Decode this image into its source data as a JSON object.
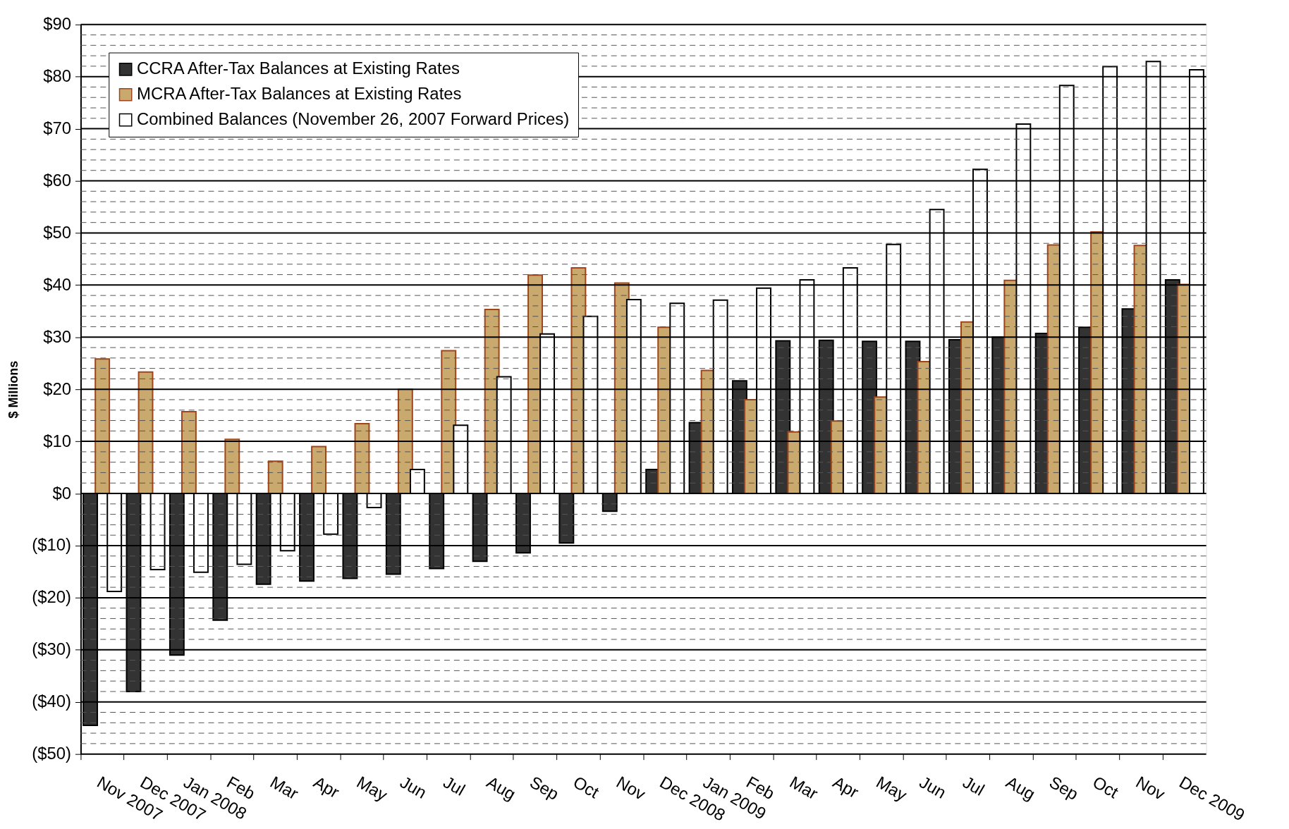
{
  "chart_data": {
    "type": "bar",
    "ylabel": "$ Millions",
    "categories": [
      "Nov 2007",
      "Dec 2007",
      "Jan 2008",
      "Feb",
      "Mar",
      "Apr",
      "May",
      "Jun",
      "Jul",
      "Aug",
      "Sep",
      "Oct",
      "Nov",
      "Dec 2008",
      "Jan 2009",
      "Feb",
      "Mar",
      "Apr",
      "May",
      "Jun",
      "Jul",
      "Aug",
      "Sep",
      "Oct",
      "Nov",
      "Dec 2009"
    ],
    "series": [
      {
        "name": "CCRA After-Tax Balances at Existing Rates",
        "color": "#333333",
        "values": [
          -44.5,
          -38,
          -31,
          -24.3,
          -17.4,
          -16.8,
          -16.3,
          -15.5,
          -14.4,
          -13,
          -11.4,
          -9.5,
          -3.4,
          4.6,
          13.6,
          21.6,
          29.3,
          29.4,
          29.2,
          29.2,
          29.5,
          30.0,
          30.7,
          31.9,
          35.4,
          41
        ]
      },
      {
        "name": "MCRA After-Tax Balances at Existing Rates",
        "color": "#c9a96e",
        "values": [
          25.8,
          23.3,
          15.7,
          10.4,
          6.2,
          9.0,
          13.4,
          20.0,
          27.4,
          35.3,
          41.9,
          43.3,
          40.4,
          31.9,
          23.6,
          18.0,
          11.8,
          13.9,
          18.5,
          25.3,
          32.9,
          40.9,
          47.7,
          50.2,
          47.6,
          40.1
        ]
      },
      {
        "name": "Combined Balances (November 26, 2007 Forward Prices)",
        "color": "#ffffff",
        "values": [
          -18.8,
          -14.6,
          -15.1,
          -13.6,
          -11.0,
          -7.8,
          -2.7,
          4.6,
          13.1,
          22.4,
          30.6,
          34.0,
          37.2,
          36.5,
          37.1,
          39.4,
          41.0,
          43.3,
          47.8,
          54.5,
          62.2,
          70.9,
          78.3,
          81.9,
          82.9,
          81.3
        ]
      }
    ],
    "ylim": [
      -50,
      90
    ],
    "yticks": [
      {
        "value": -50,
        "label": "($50)"
      },
      {
        "value": -48,
        "label": null
      },
      {
        "value": -46,
        "label": null
      },
      {
        "value": -44,
        "label": null
      },
      {
        "value": -42,
        "label": null
      },
      {
        "value": -40,
        "label": "($40)"
      },
      {
        "value": -38,
        "label": null
      },
      {
        "value": -36,
        "label": null
      },
      {
        "value": -34,
        "label": null
      },
      {
        "value": -32,
        "label": null
      },
      {
        "value": -30,
        "label": "($30)"
      },
      {
        "value": -28,
        "label": null
      },
      {
        "value": -26,
        "label": null
      },
      {
        "value": -24,
        "label": null
      },
      {
        "value": -22,
        "label": null
      },
      {
        "value": -20,
        "label": "($20)"
      },
      {
        "value": -18,
        "label": null
      },
      {
        "value": -16,
        "label": null
      },
      {
        "value": -14,
        "label": null
      },
      {
        "value": -12,
        "label": null
      },
      {
        "value": -10,
        "label": "($10)"
      },
      {
        "value": -8,
        "label": null
      },
      {
        "value": -6,
        "label": null
      },
      {
        "value": -4,
        "label": null
      },
      {
        "value": -2,
        "label": null
      },
      {
        "value": 0,
        "label": "$0"
      },
      {
        "value": 2,
        "label": null
      },
      {
        "value": 4,
        "label": null
      },
      {
        "value": 6,
        "label": null
      },
      {
        "value": 8,
        "label": null
      },
      {
        "value": 10,
        "label": "$10"
      },
      {
        "value": 12,
        "label": null
      },
      {
        "value": 14,
        "label": null
      },
      {
        "value": 16,
        "label": null
      },
      {
        "value": 18,
        "label": null
      },
      {
        "value": 20,
        "label": "$20"
      },
      {
        "value": 22,
        "label": null
      },
      {
        "value": 24,
        "label": null
      },
      {
        "value": 26,
        "label": null
      },
      {
        "value": 28,
        "label": null
      },
      {
        "value": 30,
        "label": "$30"
      },
      {
        "value": 32,
        "label": null
      },
      {
        "value": 34,
        "label": null
      },
      {
        "value": 36,
        "label": null
      },
      {
        "value": 38,
        "label": null
      },
      {
        "value": 40,
        "label": "$40"
      },
      {
        "value": 42,
        "label": null
      },
      {
        "value": 44,
        "label": null
      },
      {
        "value": 46,
        "label": null
      },
      {
        "value": 48,
        "label": null
      },
      {
        "value": 50,
        "label": "$50"
      },
      {
        "value": 52,
        "label": null
      },
      {
        "value": 54,
        "label": null
      },
      {
        "value": 56,
        "label": null
      },
      {
        "value": 58,
        "label": null
      },
      {
        "value": 60,
        "label": "$60"
      },
      {
        "value": 62,
        "label": null
      },
      {
        "value": 64,
        "label": null
      },
      {
        "value": 66,
        "label": null
      },
      {
        "value": 68,
        "label": null
      },
      {
        "value": 70,
        "label": "$70"
      },
      {
        "value": 72,
        "label": null
      },
      {
        "value": 74,
        "label": null
      },
      {
        "value": 76,
        "label": null
      },
      {
        "value": 78,
        "label": null
      },
      {
        "value": 80,
        "label": "$80"
      },
      {
        "value": 82,
        "label": null
      },
      {
        "value": 84,
        "label": null
      },
      {
        "value": 86,
        "label": null
      },
      {
        "value": 88,
        "label": null
      },
      {
        "value": 90,
        "label": "$90"
      }
    ],
    "grid": true,
    "legend": "top left"
  }
}
